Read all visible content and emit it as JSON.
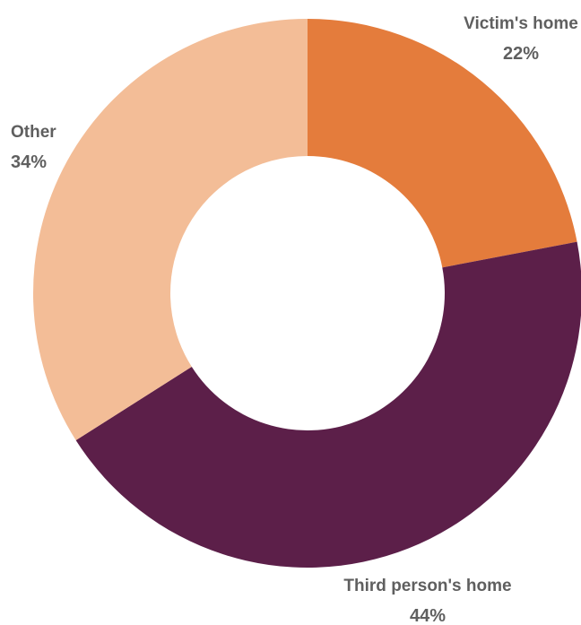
{
  "chart_data": {
    "type": "pie",
    "variant": "donut",
    "title": "",
    "start_angle_deg": 0,
    "direction": "clockwise",
    "legend": "none",
    "slices": [
      {
        "label": "Victim's home",
        "value": 22,
        "value_label": "22%",
        "color": "#e47c3c"
      },
      {
        "label": "Third person's home",
        "value": 44,
        "value_label": "44%",
        "color": "#5c1f49"
      },
      {
        "label": "Other",
        "value": 34,
        "value_label": "34%",
        "color": "#f3bd97"
      }
    ]
  }
}
